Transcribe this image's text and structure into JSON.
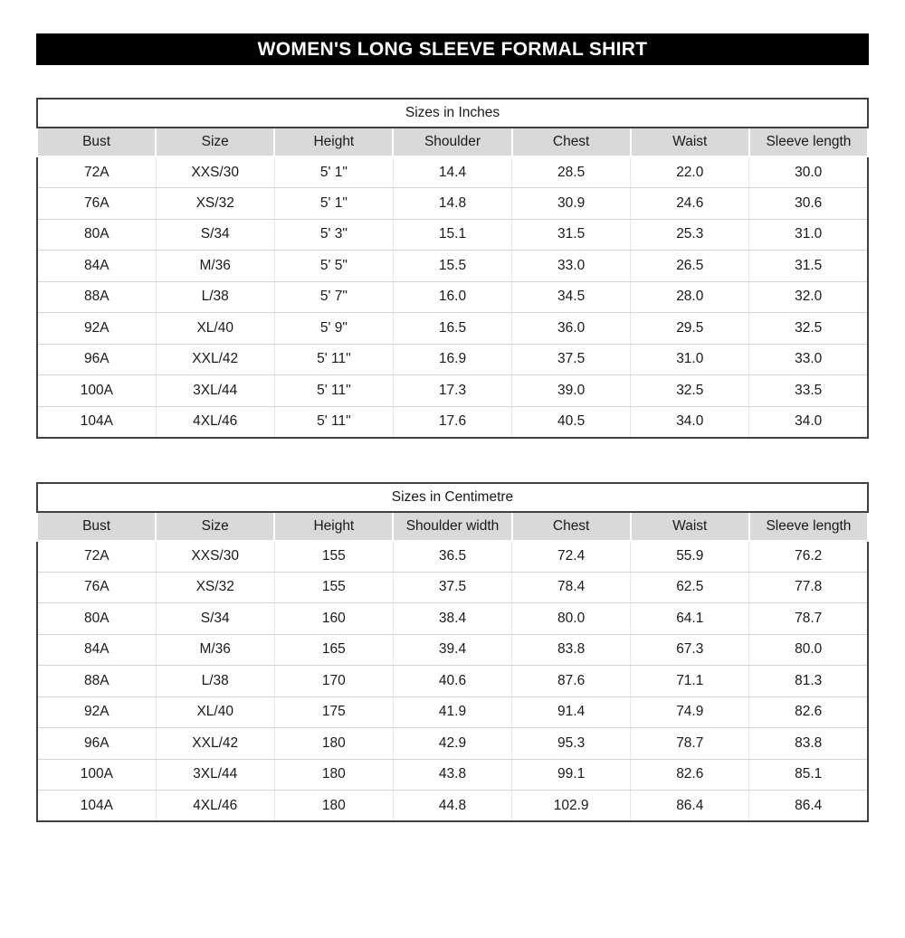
{
  "banner": {
    "title": "WOMEN'S LONG SLEEVE FORMAL SHIRT",
    "background": "#000000",
    "text_color": "#ffffff"
  },
  "colors": {
    "header_row_bg": "#d9d9d9",
    "table_border": "#404040",
    "row_divider": "#d6d6d6"
  },
  "tables": [
    {
      "caption": "Sizes in Inches",
      "columns": [
        "Bust",
        "Size",
        "Height",
        "Shoulder",
        "Chest",
        "Waist",
        "Sleeve length"
      ],
      "rows": [
        [
          "72A",
          "XXS/30",
          "5' 1\"",
          "14.4",
          "28.5",
          "22.0",
          "30.0"
        ],
        [
          "76A",
          "XS/32",
          "5' 1\"",
          "14.8",
          "30.9",
          "24.6",
          "30.6"
        ],
        [
          "80A",
          "S/34",
          "5' 3\"",
          "15.1",
          "31.5",
          "25.3",
          "31.0"
        ],
        [
          "84A",
          "M/36",
          "5' 5\"",
          "15.5",
          "33.0",
          "26.5",
          "31.5"
        ],
        [
          "88A",
          "L/38",
          "5' 7\"",
          "16.0",
          "34.5",
          "28.0",
          "32.0"
        ],
        [
          "92A",
          "XL/40",
          "5' 9\"",
          "16.5",
          "36.0",
          "29.5",
          "32.5"
        ],
        [
          "96A",
          "XXL/42",
          "5' 11\"",
          "16.9",
          "37.5",
          "31.0",
          "33.0"
        ],
        [
          "100A",
          "3XL/44",
          "5' 11\"",
          "17.3",
          "39.0",
          "32.5",
          "33.5"
        ],
        [
          "104A",
          "4XL/46",
          "5' 11\"",
          "17.6",
          "40.5",
          "34.0",
          "34.0"
        ]
      ]
    },
    {
      "caption": "Sizes in Centimetre",
      "columns": [
        "Bust",
        "Size",
        "Height",
        "Shoulder width",
        "Chest",
        "Waist",
        "Sleeve length"
      ],
      "rows": [
        [
          "72A",
          "XXS/30",
          "155",
          "36.5",
          "72.4",
          "55.9",
          "76.2"
        ],
        [
          "76A",
          "XS/32",
          "155",
          "37.5",
          "78.4",
          "62.5",
          "77.8"
        ],
        [
          "80A",
          "S/34",
          "160",
          "38.4",
          "80.0",
          "64.1",
          "78.7"
        ],
        [
          "84A",
          "M/36",
          "165",
          "39.4",
          "83.8",
          "67.3",
          "80.0"
        ],
        [
          "88A",
          "L/38",
          "170",
          "40.6",
          "87.6",
          "71.1",
          "81.3"
        ],
        [
          "92A",
          "XL/40",
          "175",
          "41.9",
          "91.4",
          "74.9",
          "82.6"
        ],
        [
          "96A",
          "XXL/42",
          "180",
          "42.9",
          "95.3",
          "78.7",
          "83.8"
        ],
        [
          "100A",
          "3XL/44",
          "180",
          "43.8",
          "99.1",
          "82.6",
          "85.1"
        ],
        [
          "104A",
          "4XL/46",
          "180",
          "44.8",
          "102.9",
          "86.4",
          "86.4"
        ]
      ]
    }
  ]
}
